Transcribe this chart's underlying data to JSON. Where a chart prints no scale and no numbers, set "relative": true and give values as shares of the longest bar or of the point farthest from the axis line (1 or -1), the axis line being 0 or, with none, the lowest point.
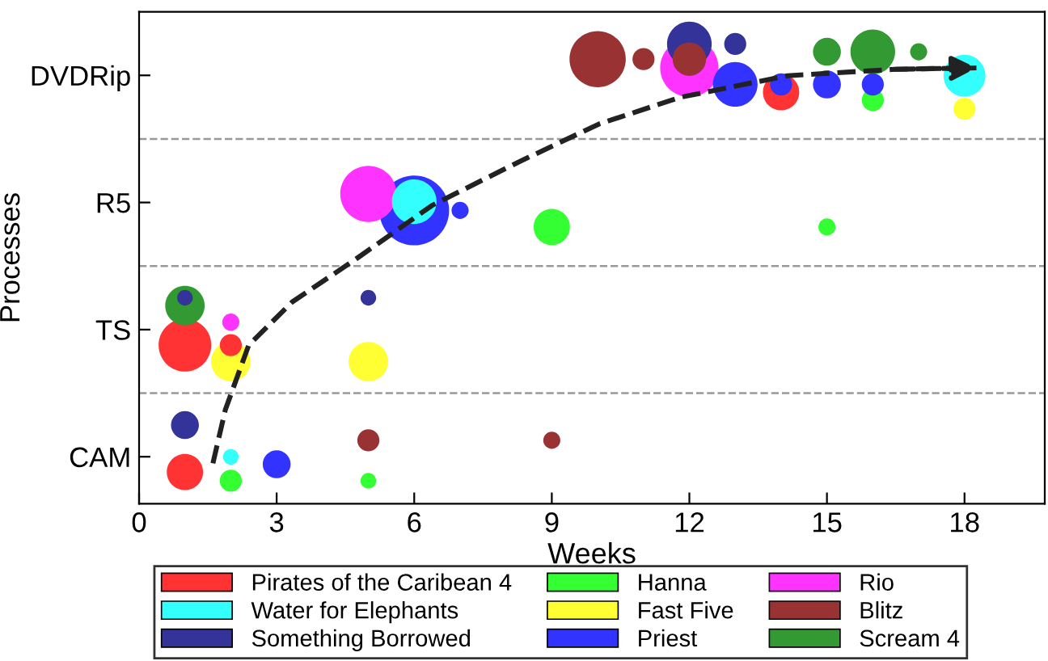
{
  "chart_data": {
    "type": "bubble",
    "xlabel": "Weeks",
    "ylabel": "Processes",
    "relative": true,
    "xlim": [
      0,
      19.75
    ],
    "xticks": [
      0,
      3,
      6,
      9,
      12,
      15,
      18
    ],
    "y_categories": [
      "DVDRip",
      "R5",
      "TS",
      "CAM"
    ],
    "legend": "bottom",
    "grid": false,
    "series": [
      {
        "name": "Pirates of the Caribean 4",
        "color": "#ff3333",
        "x": [
          1,
          2,
          1,
          14
        ],
        "values": [
          0.345,
          0.345,
          0.069,
          0.895
        ],
        "sizes": [
          0.57,
          0.1,
          0.27,
          0.27
        ]
      },
      {
        "name": "Water for Elephants",
        "color": "#33ffff",
        "x": [
          2,
          6,
          18
        ],
        "values": [
          0.102,
          0.657,
          0.931
        ],
        "sizes": [
          0.05,
          0.41,
          0.36
        ]
      },
      {
        "name": "Something Borrowed",
        "color": "#333399",
        "x": [
          1,
          5,
          1,
          12,
          13
        ],
        "values": [
          0.448,
          0.448,
          0.171,
          1.0,
          1.0
        ],
        "sizes": [
          0.05,
          0.05,
          0.16,
          0.41,
          0.1
        ]
      },
      {
        "name": "Hanna",
        "color": "#33ff33",
        "x": [
          2,
          5,
          9,
          15,
          16
        ],
        "values": [
          0.05,
          0.05,
          0.602,
          0.602,
          0.878
        ],
        "sizes": [
          0.1,
          0.05,
          0.27,
          0.06,
          0.1
        ]
      },
      {
        "name": "Fast Five",
        "color": "#ffff33",
        "x": [
          2,
          5,
          18
        ],
        "values": [
          0.309,
          0.309,
          0.859
        ],
        "sizes": [
          0.32,
          0.32,
          0.1
        ]
      },
      {
        "name": "Priest",
        "color": "#3333ff",
        "x": [
          3,
          6,
          7,
          13,
          14,
          15,
          16
        ],
        "values": [
          0.086,
          0.638,
          0.638,
          0.912,
          0.912,
          0.912,
          0.912
        ],
        "sizes": [
          0.16,
          1.0,
          0.06,
          0.41,
          0.1,
          0.16,
          0.1
        ]
      },
      {
        "name": "Rio",
        "color": "#ff33ff",
        "x": [
          2,
          5,
          12
        ],
        "values": [
          0.395,
          0.674,
          0.948
        ],
        "sizes": [
          0.06,
          0.65,
          0.7
        ]
      },
      {
        "name": "Blitz",
        "color": "#993333",
        "x": [
          5,
          9,
          10,
          11,
          12
        ],
        "values": [
          0.138,
          0.138,
          0.967,
          0.967,
          0.967
        ],
        "sizes": [
          0.1,
          0.06,
          0.65,
          0.1,
          0.23
        ]
      },
      {
        "name": "Scream 4",
        "color": "#339933",
        "x": [
          1,
          15,
          16,
          17
        ],
        "values": [
          0.431,
          0.983,
          0.983,
          0.983
        ],
        "sizes": [
          0.32,
          0.16,
          0.41,
          0.06
        ]
      },
      {
        "type": "line",
        "color": "#222222",
        "line_style": "dashed",
        "x": [
          1.61,
          1.88,
          2.39,
          3.34,
          4.74,
          6.39,
          8.27,
          10.03,
          11.8,
          14.14,
          16.49,
          18.26
        ],
        "values": [
          0.088,
          0.204,
          0.345,
          0.439,
          0.533,
          0.649,
          0.743,
          0.826,
          0.884,
          0.931,
          0.945,
          0.948
        ]
      }
    ]
  }
}
